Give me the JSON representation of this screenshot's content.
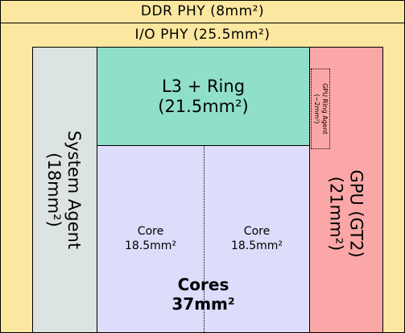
{
  "ddr_phy": {
    "label": "DDR PHY (8mm²)",
    "color": "#fbe7a0"
  },
  "io_phy": {
    "label": "I/O PHY (25.5mm²)",
    "color": "#fbe7a0"
  },
  "system_agent": {
    "name": "System Agent",
    "area": "(18mm²)",
    "color": "#dce3e3"
  },
  "l3_ring": {
    "name": "L3 + Ring",
    "area": "(21.5mm²)",
    "color": "#8fdfcb"
  },
  "gpu": {
    "name": "GPU (GT2)",
    "area": "(21mm²)",
    "color": "#fba7a7"
  },
  "gpu_ring_agent": {
    "name": "GPU Ring Agent",
    "area": "(~2mm²)"
  },
  "cores": {
    "color": "#dcdcfb",
    "core_left": {
      "name": "Core",
      "area": "18.5mm²"
    },
    "core_right": {
      "name": "Core",
      "area": "18.5mm²"
    },
    "total_name": "Cores",
    "total_area": "37mm²"
  }
}
